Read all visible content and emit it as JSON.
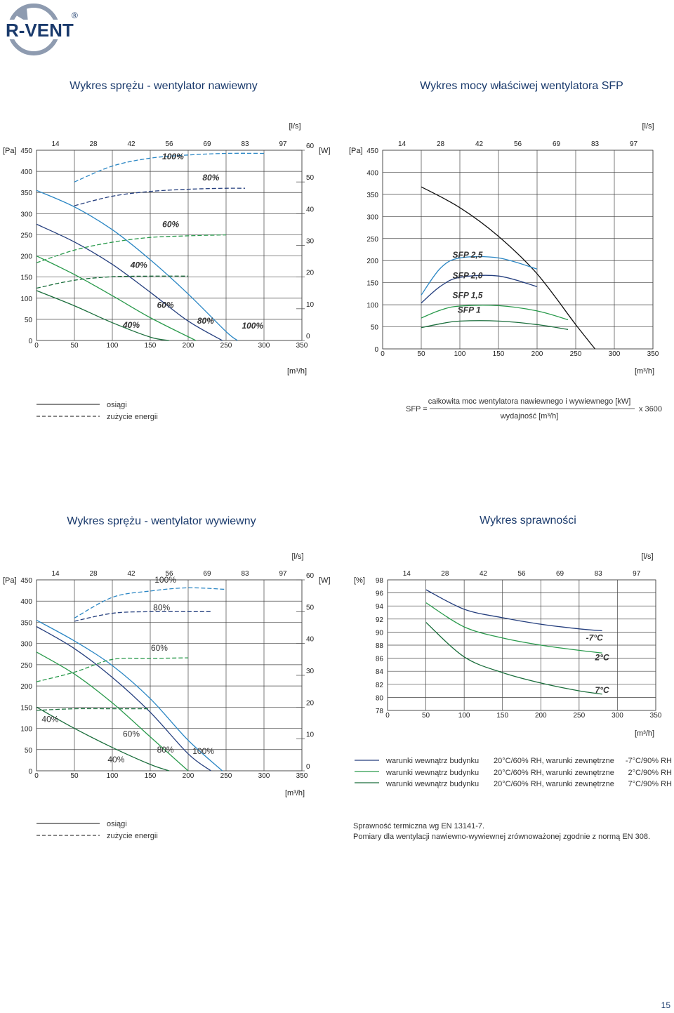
{
  "logo": {
    "text": "R-VENT",
    "registered": "®"
  },
  "page_number": "15",
  "chart_data": [
    {
      "id": "c1",
      "type": "line",
      "title": "Wykres sprężu - wentylator nawiewny",
      "xlabel": "[m³/h]",
      "ylabel": "[Pa]",
      "y2label": "[W]",
      "x2label": "[l/s]",
      "xlim": [
        0,
        350
      ],
      "ylim": [
        0,
        450
      ],
      "y2lim": [
        0,
        60
      ],
      "xticks": [
        0,
        50,
        100,
        150,
        200,
        250,
        300,
        350
      ],
      "yticks": [
        0,
        50,
        100,
        150,
        200,
        250,
        300,
        350,
        400,
        450
      ],
      "y2ticks": [
        0,
        10,
        20,
        30,
        40,
        50,
        60
      ],
      "x2ticks": [
        14,
        28,
        42,
        56,
        69,
        83,
        97
      ],
      "grid": true,
      "bold_labels": true,
      "series": [
        {
          "name": "100%",
          "style": "solid",
          "color": "#2a86c4",
          "x": [
            0,
            50,
            100,
            150,
            200,
            250,
            265
          ],
          "y": [
            355,
            316,
            262,
            191,
            110,
            21,
            0
          ]
        },
        {
          "name": "80%",
          "style": "solid",
          "color": "#253f7e",
          "x": [
            0,
            50,
            100,
            150,
            200,
            245
          ],
          "y": [
            275,
            233,
            180,
            114,
            46,
            0
          ]
        },
        {
          "name": "60%",
          "style": "solid",
          "color": "#2a9a4c",
          "x": [
            0,
            50,
            100,
            150,
            210
          ],
          "y": [
            200,
            156,
            106,
            54,
            0
          ]
        },
        {
          "name": "40%",
          "style": "solid",
          "color": "#1b6e3c",
          "x": [
            0,
            50,
            100,
            150,
            175
          ],
          "y": [
            118,
            82,
            42,
            8,
            0
          ]
        },
        {
          "name": "100%",
          "style": "dashed",
          "color": "#2a86c4",
          "axis": "y2",
          "x": [
            50,
            100,
            150,
            200,
            250,
            300
          ],
          "y": [
            50,
            55,
            57.5,
            58.5,
            59,
            59
          ]
        },
        {
          "name": "80%",
          "style": "dashed",
          "color": "#253f7e",
          "axis": "y2",
          "x": [
            50,
            100,
            150,
            200,
            250,
            275
          ],
          "y": [
            42.5,
            45.5,
            47,
            47.7,
            48,
            48
          ]
        },
        {
          "name": "60%",
          "style": "dashed",
          "color": "#2a9a4c",
          "axis": "y2",
          "x": [
            0,
            50,
            100,
            150,
            200,
            250
          ],
          "y": [
            24.5,
            28.5,
            31,
            32.5,
            33,
            33.3
          ]
        },
        {
          "name": "40%",
          "style": "dashed",
          "color": "#1b6e3c",
          "axis": "y2",
          "x": [
            0,
            50,
            100,
            150,
            200
          ],
          "y": [
            16.5,
            19,
            20.1,
            20.3,
            20.3
          ]
        }
      ],
      "labels": [
        {
          "text": "100%",
          "x": 180,
          "y": 428
        },
        {
          "text": "80%",
          "x": 230,
          "y": 379
        },
        {
          "text": "60%",
          "x": 177,
          "y": 268
        },
        {
          "text": "40%",
          "x": 135,
          "y": 172
        },
        {
          "text": "60%",
          "x": 170,
          "y": 77
        },
        {
          "text": "40%",
          "x": 125,
          "y": 30
        },
        {
          "text": "80%",
          "x": 223,
          "y": 40
        },
        {
          "text": "100%",
          "x": 285,
          "y": 28
        }
      ]
    },
    {
      "id": "c2",
      "type": "line",
      "title": "Wykres mocy właściwej wentylatora SFP",
      "xlabel": "[m³/h]",
      "ylabel": "[Pa]",
      "x2label": "[l/s]",
      "xlim": [
        0,
        350
      ],
      "ylim": [
        0,
        450
      ],
      "xticks": [
        0,
        50,
        100,
        150,
        200,
        250,
        300,
        350
      ],
      "yticks": [
        0,
        50,
        100,
        150,
        200,
        250,
        300,
        350,
        400,
        450
      ],
      "x2ticks": [
        14,
        28,
        42,
        56,
        69,
        83,
        97
      ],
      "grid": true,
      "bold_labels": true,
      "series": [
        {
          "name": "",
          "style": "solid",
          "color": "#111111",
          "x": [
            50,
            100,
            150,
            200,
            250,
            275
          ],
          "y": [
            367,
            320,
            255,
            170,
            55,
            0
          ]
        },
        {
          "name": "SFP 2,5",
          "style": "solid",
          "color": "#2a86c4",
          "x": [
            50,
            75,
            100,
            150,
            200
          ],
          "y": [
            122,
            183,
            206,
            206,
            181
          ]
        },
        {
          "name": "SFP 2,0",
          "style": "solid",
          "color": "#253f7e",
          "x": [
            50,
            75,
            100,
            150,
            200
          ],
          "y": [
            104,
            142,
            162,
            165,
            141
          ]
        },
        {
          "name": "SFP 1,5",
          "style": "solid",
          "color": "#2a9a4c",
          "x": [
            50,
            75,
            100,
            150,
            200,
            240
          ],
          "y": [
            70,
            88,
            97,
            98,
            86,
            66
          ]
        },
        {
          "name": "SFP 1",
          "style": "solid",
          "color": "#1b6e3c",
          "x": [
            50,
            75,
            100,
            150,
            200,
            240
          ],
          "y": [
            48,
            57,
            63,
            63,
            55,
            44
          ]
        }
      ],
      "labels": [
        {
          "text": "SFP 2,5",
          "x": 110,
          "y": 207
        },
        {
          "text": "SFP 2,0",
          "x": 110,
          "y": 160
        },
        {
          "text": "SFP 1,5",
          "x": 110,
          "y": 115
        },
        {
          "text": "SFP 1",
          "x": 112,
          "y": 82
        }
      ]
    },
    {
      "id": "c3",
      "type": "line",
      "title": "Wykres sprężu - wentylator wywiewny",
      "xlabel": "[m³/h]",
      "ylabel": "[Pa]",
      "y2label": "[W]",
      "x2label": "[l/s]",
      "xlim": [
        0,
        350
      ],
      "ylim": [
        0,
        450
      ],
      "y2lim": [
        0,
        60
      ],
      "xticks": [
        0,
        50,
        100,
        150,
        200,
        250,
        300,
        350
      ],
      "yticks": [
        0,
        50,
        100,
        150,
        200,
        250,
        300,
        350,
        400,
        450
      ],
      "y2ticks": [
        0,
        10,
        20,
        30,
        40,
        50,
        60
      ],
      "x2ticks": [
        14,
        28,
        42,
        56,
        69,
        83,
        97
      ],
      "grid": true,
      "bold_labels": false,
      "series": [
        {
          "name": "100%",
          "style": "solid",
          "color": "#2a86c4",
          "x": [
            0,
            50,
            100,
            150,
            200,
            245
          ],
          "y": [
            355,
            306,
            248,
            170,
            72,
            0
          ]
        },
        {
          "name": "80%",
          "style": "solid",
          "color": "#253f7e",
          "x": [
            0,
            50,
            100,
            150,
            200,
            230
          ],
          "y": [
            340,
            288,
            220,
            138,
            40,
            0
          ]
        },
        {
          "name": "60%",
          "style": "solid",
          "color": "#2a9a4c",
          "x": [
            0,
            50,
            100,
            150,
            200
          ],
          "y": [
            280,
            228,
            160,
            80,
            0
          ]
        },
        {
          "name": "40%",
          "style": "solid",
          "color": "#1b6e3c",
          "x": [
            0,
            50,
            100,
            150,
            175
          ],
          "y": [
            150,
            100,
            55,
            15,
            0
          ]
        },
        {
          "name": "100%",
          "style": "dashed",
          "color": "#2a86c4",
          "axis": "y2",
          "x": [
            50,
            100,
            150,
            200,
            250
          ],
          "y": [
            48,
            54.5,
            56.5,
            57.5,
            57
          ]
        },
        {
          "name": "80%",
          "style": "dashed",
          "color": "#253f7e",
          "axis": "y2",
          "x": [
            50,
            100,
            150,
            200,
            230
          ],
          "y": [
            47,
            49.5,
            50,
            50,
            50
          ]
        },
        {
          "name": "60%",
          "style": "dashed",
          "color": "#2a9a4c",
          "axis": "y2",
          "x": [
            0,
            50,
            100,
            150,
            200
          ],
          "y": [
            28,
            31,
            35,
            35.3,
            35.5
          ]
        },
        {
          "name": "40%",
          "style": "dashed",
          "color": "#1b6e3c",
          "axis": "y2",
          "x": [
            0,
            50,
            100,
            150
          ],
          "y": [
            19,
            19.5,
            19.5,
            19.5
          ]
        }
      ],
      "labels": [
        {
          "text": "100%",
          "x": 170,
          "y": 443
        },
        {
          "text": "80%",
          "x": 165,
          "y": 378
        },
        {
          "text": "60%",
          "x": 162,
          "y": 283
        },
        {
          "text": "40%",
          "x": 18,
          "y": 115
        },
        {
          "text": "60%",
          "x": 125,
          "y": 80
        },
        {
          "text": "40%",
          "x": 105,
          "y": 20
        },
        {
          "text": "80%",
          "x": 170,
          "y": 43
        },
        {
          "text": "100%",
          "x": 220,
          "y": 40
        }
      ]
    },
    {
      "id": "c4",
      "type": "line",
      "title": "Wykres sprawności",
      "xlabel": "[m³/h]",
      "ylabel": "[%]",
      "x2label": "[l/s]",
      "xlim": [
        0,
        350
      ],
      "ylim": [
        78,
        98
      ],
      "xticks": [
        0,
        50,
        100,
        150,
        200,
        250,
        300,
        350
      ],
      "yticks": [
        78,
        80,
        82,
        84,
        86,
        88,
        90,
        92,
        94,
        96,
        98
      ],
      "x2ticks": [
        14,
        28,
        42,
        56,
        69,
        83,
        97
      ],
      "grid": true,
      "bold_labels": true,
      "series": [
        {
          "name": "-7°C",
          "style": "solid",
          "color": "#253f7e",
          "x": [
            50,
            100,
            150,
            200,
            250,
            280
          ],
          "y": [
            96.5,
            93.5,
            92.2,
            91.2,
            90.5,
            90.2
          ]
        },
        {
          "name": "2°C",
          "style": "solid",
          "color": "#2a9a4c",
          "x": [
            50,
            100,
            150,
            200,
            250,
            280
          ],
          "y": [
            94.5,
            90.8,
            89.1,
            88,
            87.2,
            86.8
          ]
        },
        {
          "name": "7°C",
          "style": "solid",
          "color": "#1b6e3c",
          "x": [
            50,
            100,
            150,
            200,
            250,
            280
          ],
          "y": [
            91.5,
            86.2,
            83.8,
            82.2,
            81,
            80.5
          ]
        }
      ],
      "labels": [
        {
          "text": "-7°C",
          "x": 270,
          "y": 88.7
        },
        {
          "text": "2°C",
          "x": 280,
          "y": 85.7
        },
        {
          "text": "7°C",
          "x": 280,
          "y": 80.7
        }
      ]
    }
  ],
  "legend1": {
    "solid": "osiągi",
    "dashed": "zużycie energii"
  },
  "sfp_formula": {
    "lhs": "SFP =",
    "numerator": "całkowita moc wentylatora nawiewnego i wywiewnego [kW]",
    "denominator": "wydajność [m³/h]",
    "multiplier": "x 3600"
  },
  "legend2": {
    "solid": "osiągi",
    "dashed": "zużycie energii"
  },
  "efficiency_legend": [
    {
      "color": "#253f7e",
      "a": "warunki wewnątrz budynku",
      "b": "20°C/60% RH, warunki zewnętrzne",
      "c": "-7°C/90% RH"
    },
    {
      "color": "#2a9a4c",
      "a": "warunki wewnątrz budynku",
      "b": "20°C/60% RH, warunki zewnętrzne",
      "c": "2°C/90% RH"
    },
    {
      "color": "#1b6e3c",
      "a": "warunki wewnątrz budynku",
      "b": "20°C/60% RH, warunki zewnętrzne",
      "c": "7°C/90% RH"
    }
  ],
  "notes": {
    "line1": "Sprawność termiczna wg EN 13141-7.",
    "line2": "Pomiary dla wentylacji nawiewno-wywiewnej zrównoważonej zgodnie z normą EN 308."
  }
}
